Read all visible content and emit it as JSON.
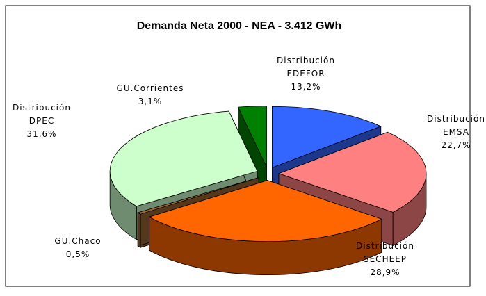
{
  "chart_data": {
    "type": "pie",
    "title": "Demanda Neta 2000 - NEA - 3.412 GWh",
    "categories": [
      "Distribución EDEFOR",
      "Distribución EMSA",
      "Distribución SECHEEP",
      "GU.Chaco",
      "Distribución DPEC",
      "GU.Corrientes"
    ],
    "values": [
      13.2,
      22.7,
      28.9,
      0.5,
      31.6,
      3.1
    ],
    "value_labels": [
      "13,2%",
      "22,7%",
      "28,9%",
      "0,5%",
      "31,6%",
      "3,1%"
    ],
    "colors": [
      "#3366ff",
      "#ff8080",
      "#ff6600",
      "#996633",
      "#ccffcc",
      "#008000"
    ]
  }
}
